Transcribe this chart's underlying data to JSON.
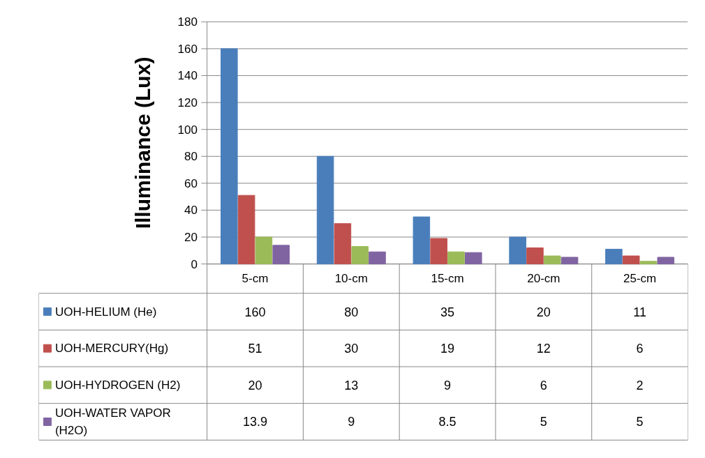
{
  "chart_data": {
    "type": "bar",
    "ylabel": "Illuminance (Lux)",
    "categories": [
      "5-cm",
      "10-cm",
      "15-cm",
      "20-cm",
      "25-cm"
    ],
    "series": [
      {
        "name": "UOH-HELIUM (He)",
        "color": "#4a7ebb",
        "values": [
          160,
          80,
          35,
          20,
          11
        ]
      },
      {
        "name": "UOH-MERCURY(Hg)",
        "color": "#c0504d",
        "values": [
          51,
          30,
          19,
          12,
          6
        ]
      },
      {
        "name": "UOH-HYDROGEN (H2)",
        "color": "#9bbb59",
        "values": [
          20,
          13,
          9,
          6,
          2
        ]
      },
      {
        "name": "UOH-WATER VAPOR (H2O)",
        "color": "#8064a2",
        "values": [
          13.9,
          9,
          8.5,
          5,
          5
        ]
      }
    ],
    "ylim": [
      0,
      180
    ],
    "yticks": [
      0,
      20,
      40,
      60,
      80,
      100,
      120,
      140,
      160,
      180
    ],
    "grid": "y",
    "legend": "bottom",
    "data_labels": true
  }
}
